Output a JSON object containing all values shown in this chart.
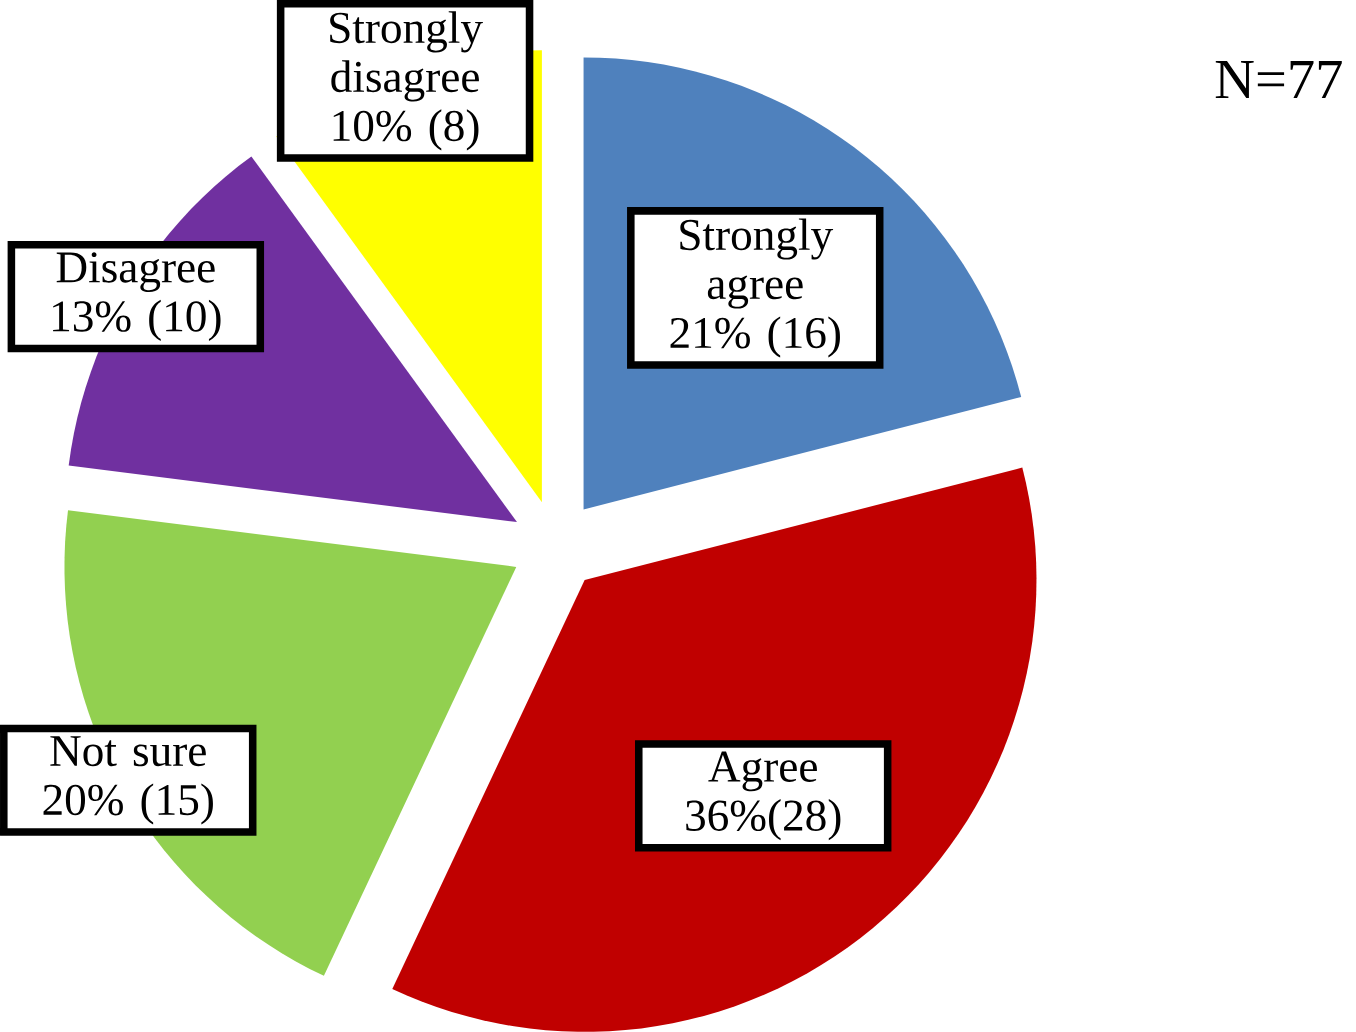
{
  "chart_data": {
    "type": "pie",
    "categories": [
      "Strongly agree",
      "Agree",
      "Not sure",
      "Disagree",
      "Strongly disagree"
    ],
    "values": [
      21,
      36,
      20,
      13,
      10
    ],
    "value_labels": [
      "21% (16)",
      "36%(28)",
      "20% (15)",
      "13% (10)",
      "10% (8)"
    ],
    "colors": [
      "#4f81bd",
      "#c00000",
      "#92d050",
      "#7030a0",
      "#ffff00"
    ],
    "annotations": [
      "N=77"
    ]
  }
}
